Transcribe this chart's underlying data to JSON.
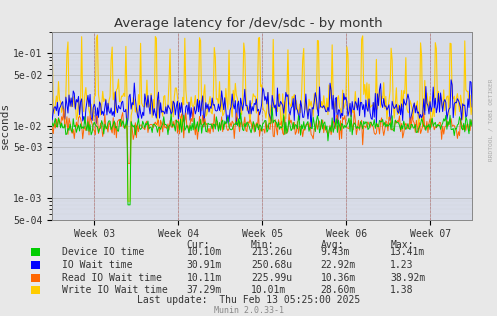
{
  "title": "Average latency for /dev/sdc - by month",
  "ylabel": "seconds",
  "watermark": "RRDTOOL / TOBI OETIKER",
  "footer": "Munin 2.0.33-1",
  "last_update": "Last update:  Thu Feb 13 05:25:00 2025",
  "x_ticks": [
    "Week 03",
    "Week 04",
    "Week 05",
    "Week 06",
    "Week 07"
  ],
  "ymin": 0.0005,
  "ymax": 0.2,
  "bg_color": "#e8e8e8",
  "plot_bg_color": "#d8dce8",
  "legend": [
    {
      "label": "Device IO time",
      "color": "#00cc00"
    },
    {
      "label": "IO Wait time",
      "color": "#0000ff"
    },
    {
      "label": "Read IO Wait time",
      "color": "#ff6600"
    },
    {
      "label": "Write IO Wait time",
      "color": "#ffcc00"
    }
  ],
  "legend_cols": [
    "Cur:",
    "Min:",
    "Avg:",
    "Max:"
  ],
  "legend_rows": [
    [
      "10.10m",
      "213.26u",
      "9.43m",
      "13.41m"
    ],
    [
      "30.91m",
      "250.68u",
      "22.92m",
      "1.23"
    ],
    [
      "10.11m",
      "225.99u",
      "10.36m",
      "38.92m"
    ],
    [
      "37.29m",
      "10.01m",
      "28.60m",
      "1.38"
    ]
  ],
  "n_points": 400,
  "seed": 42
}
